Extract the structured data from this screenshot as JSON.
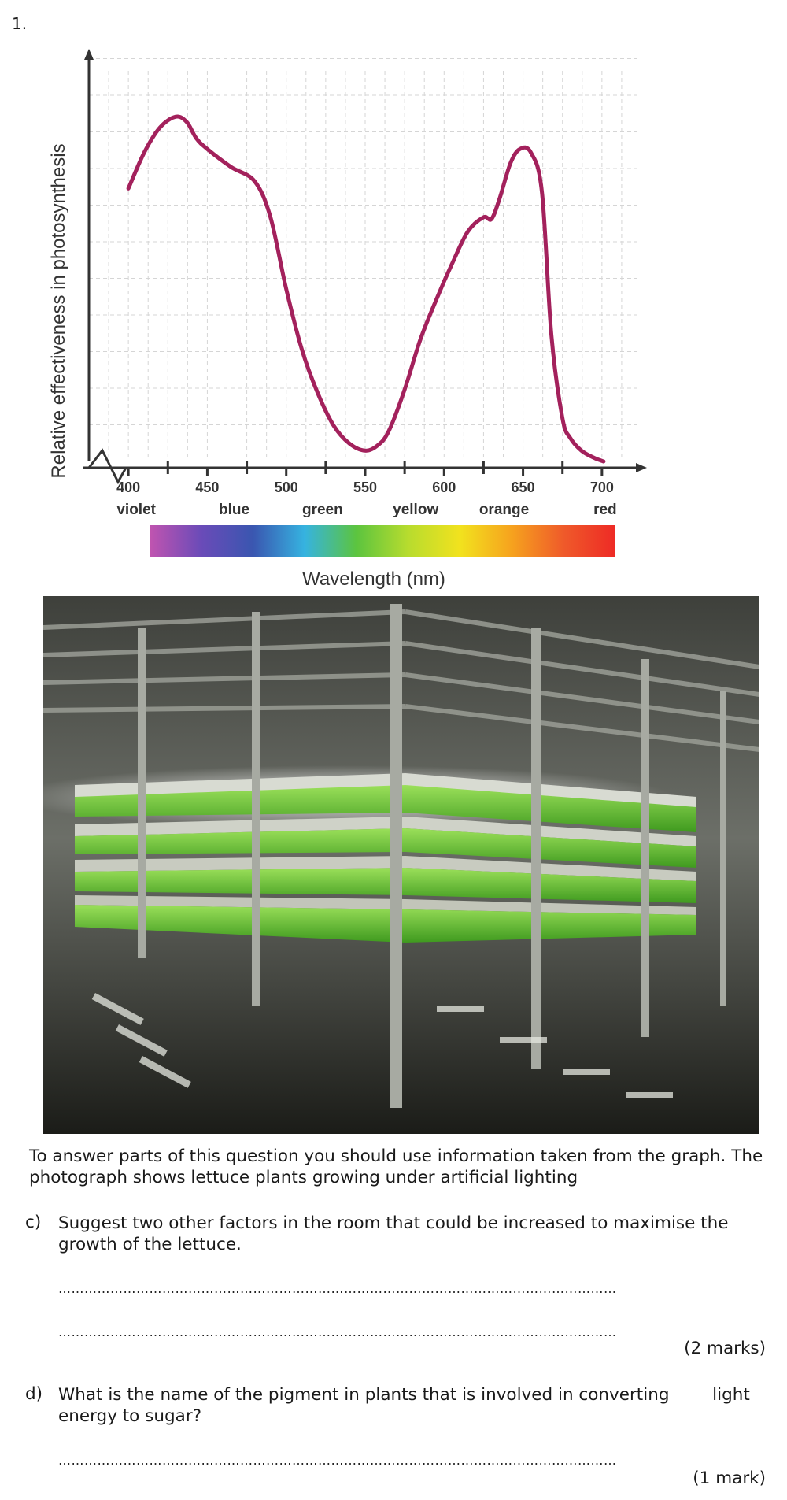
{
  "question_number": "1.",
  "chart_data": {
    "type": "line",
    "ylabel": "Relative effectiveness in photosynthesis",
    "xlabel": "Wavelength (nm)",
    "x_ticks": [
      "400",
      "450",
      "500",
      "550",
      "600",
      "650",
      "700"
    ],
    "color_labels": [
      {
        "name": "violet",
        "x": 405
      },
      {
        "name": "blue",
        "x": 467
      },
      {
        "name": "green",
        "x": 523
      },
      {
        "name": "yellow",
        "x": 582
      },
      {
        "name": "orange",
        "x": 638
      },
      {
        "name": "red",
        "x": 702
      }
    ],
    "xlim": [
      375,
      725
    ],
    "ylim": [
      0,
      10
    ],
    "grid": true,
    "spectrum_colors": [
      "#c154b0",
      "#6a4bb8",
      "#3a56b0",
      "#36b3e0",
      "#5cc43f",
      "#b8dc2e",
      "#f2e21e",
      "#f6a21e",
      "#ef5a2a",
      "#ee2a25"
    ],
    "curve_color": "#a3215c",
    "series": [
      {
        "x": [
          400,
          410,
          420,
          430,
          437,
          443,
          450,
          465,
          480,
          490,
          500,
          510,
          520,
          530,
          540,
          550,
          558,
          565,
          575,
          585,
          595,
          605,
          615,
          625,
          630,
          635,
          642,
          648,
          655,
          662,
          668,
          675,
          680,
          687,
          695,
          701
        ],
        "y": [
          7.6,
          8.6,
          9.3,
          9.6,
          9.45,
          9.0,
          8.7,
          8.2,
          7.8,
          6.8,
          4.8,
          3.1,
          1.9,
          1.0,
          0.5,
          0.3,
          0.45,
          0.85,
          2.0,
          3.4,
          4.5,
          5.5,
          6.4,
          6.8,
          6.75,
          7.3,
          8.3,
          8.7,
          8.6,
          7.5,
          3.5,
          1.2,
          0.65,
          0.3,
          0.1,
          0.0
        ]
      }
    ]
  },
  "intro": "To answer parts of this question you should use information taken from the graph.  The photograph shows lettuce plants growing under artificial lighting",
  "qc": {
    "label": "c)",
    "text": "Suggest two other factors in the room that could be increased to maximise the growth of the lettuce.",
    "marks": "(2 marks)"
  },
  "qd": {
    "label": "d)",
    "text": "What is the name of the pigment in plants that is involved in converting        light energy to sugar?",
    "marks": "(1 mark)"
  },
  "answer_dots": "……………………………………………………………………………………………………………………"
}
